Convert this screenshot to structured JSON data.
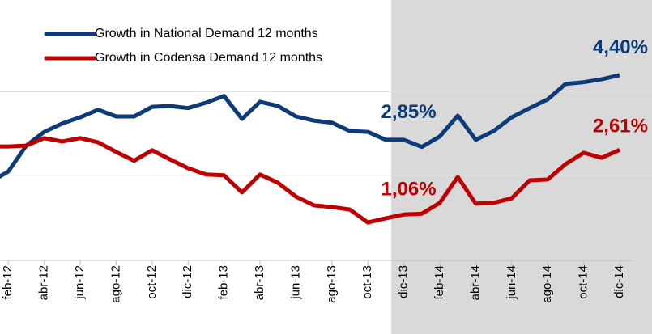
{
  "chart_data": {
    "type": "line",
    "categories": [
      null,
      "feb-12",
      null,
      "abr-12",
      null,
      "jun-12",
      null,
      "ago-12",
      null,
      "oct-12",
      null,
      "dic-12",
      null,
      "feb-13",
      null,
      "abr-13",
      null,
      "jun-13",
      null,
      "ago-13",
      null,
      "oct-13",
      null,
      "dic-13",
      null,
      "feb-14",
      null,
      "abr-14",
      null,
      "jun-14",
      null,
      "ago-14",
      null,
      "oct-14",
      null,
      "dic-14"
    ],
    "series": [
      {
        "name": "Growth in National Demand 12 months",
        "color": "#0d3a78",
        "values": [
          1.84,
          2.09,
          2.71,
          3.04,
          3.24,
          3.39,
          3.57,
          3.41,
          3.41,
          3.64,
          3.66,
          3.61,
          3.74,
          3.9,
          3.35,
          3.76,
          3.66,
          3.41,
          3.31,
          3.26,
          3.06,
          3.04,
          2.85,
          2.85,
          2.68,
          2.93,
          3.43,
          2.85,
          3.06,
          3.39,
          3.61,
          3.82,
          4.19,
          4.23,
          4.3,
          4.4
        ],
        "value_labels": [
          null,
          null,
          null,
          null,
          null,
          null,
          null,
          null,
          null,
          null,
          null,
          null,
          null,
          null,
          null,
          null,
          null,
          null,
          null,
          null,
          null,
          null,
          null,
          "2,85%",
          null,
          null,
          null,
          null,
          null,
          null,
          null,
          null,
          null,
          null,
          null,
          "4,40%"
        ]
      },
      {
        "name": "Growth in Codensa Demand 12 months",
        "color": "#c00000",
        "values": [
          2.69,
          2.69,
          2.71,
          2.89,
          2.81,
          2.89,
          2.79,
          2.56,
          2.35,
          2.6,
          2.38,
          2.17,
          2.02,
          2.0,
          1.59,
          2.02,
          1.82,
          1.49,
          1.28,
          1.24,
          1.18,
          0.87,
          0.97,
          1.06,
          1.08,
          1.34,
          1.96,
          1.32,
          1.34,
          1.45,
          1.88,
          1.9,
          2.27,
          2.54,
          2.42,
          2.61
        ],
        "value_labels": [
          null,
          null,
          null,
          null,
          null,
          null,
          null,
          null,
          null,
          null,
          null,
          null,
          null,
          null,
          null,
          null,
          null,
          null,
          null,
          null,
          null,
          null,
          null,
          "1,06%",
          null,
          null,
          null,
          null,
          null,
          null,
          null,
          null,
          null,
          null,
          null,
          "2,61%"
        ]
      }
    ],
    "ylim": [
      0,
      6.2
    ],
    "yticks": [
      2,
      4
    ],
    "grid": true
  }
}
